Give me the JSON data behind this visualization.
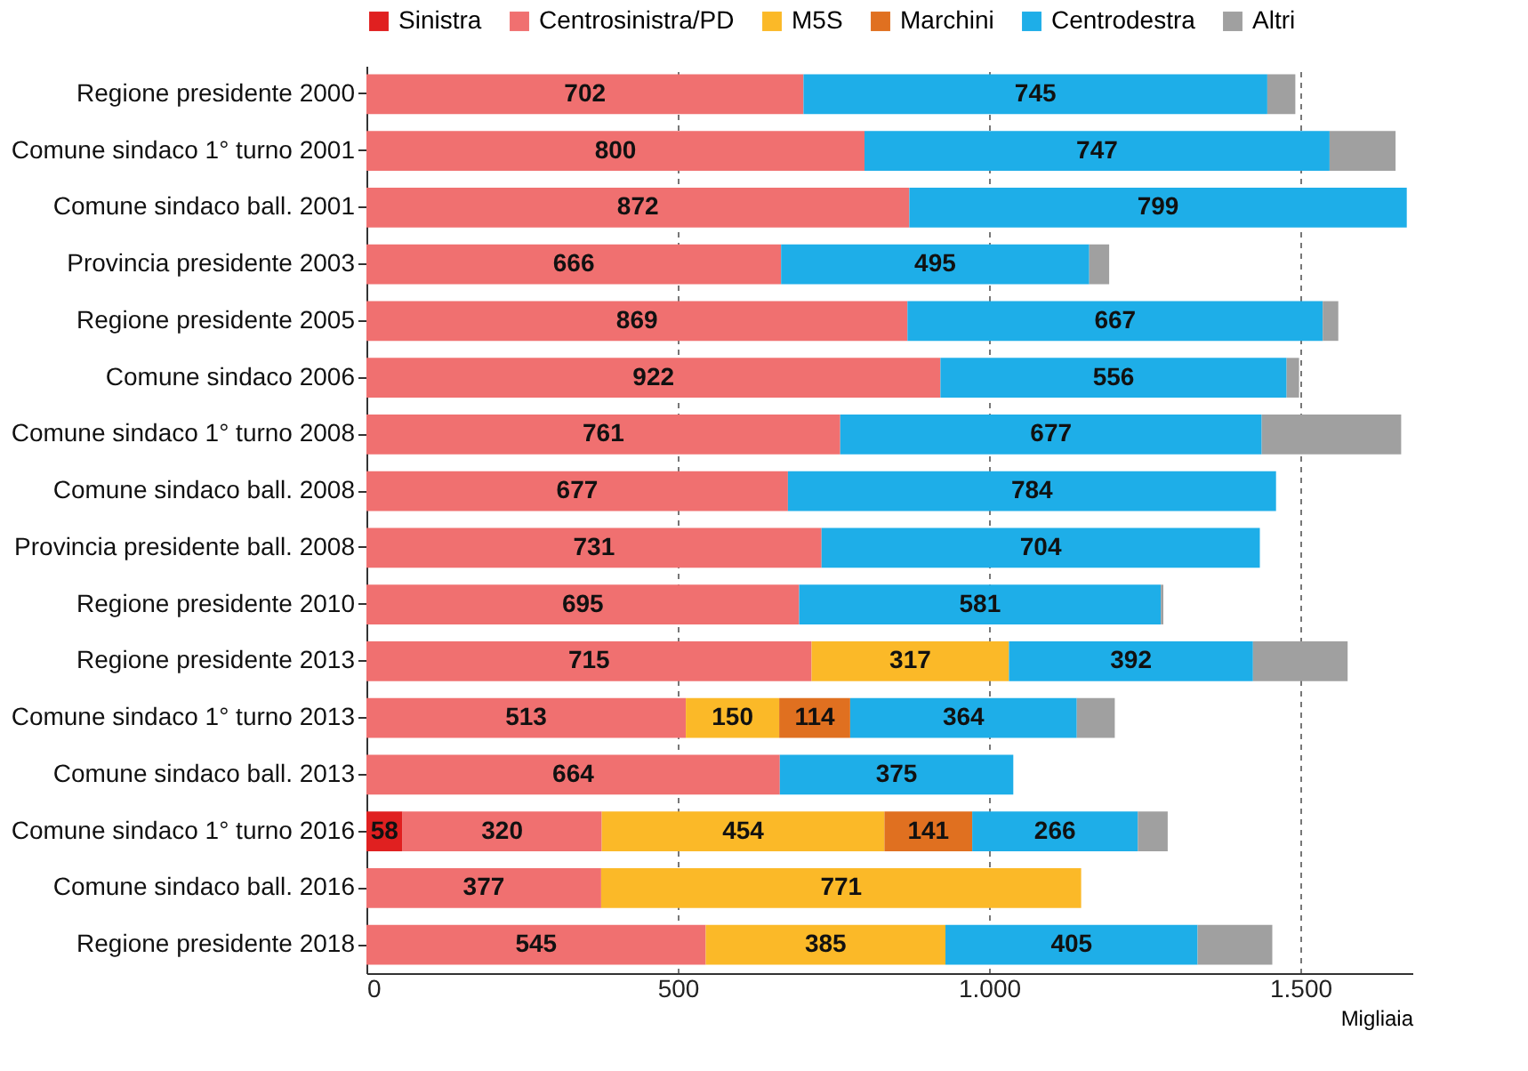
{
  "chart_data": {
    "type": "bar",
    "orientation": "horizontal",
    "stacked": true,
    "xlabel": "Migliaia",
    "categories": [
      "Regione presidente 2000",
      "Comune sindaco 1° turno 2001",
      "Comune sindaco ball. 2001",
      "Provincia presidente 2003",
      "Regione presidente 2005",
      "Comune sindaco 2006",
      "Comune sindaco 1° turno 2008",
      "Comune sindaco ball. 2008",
      "Provincia presidente ball. 2008",
      "Regione presidente 2010",
      "Regione presidente 2013",
      "Comune sindaco 1° turno 2013",
      "Comune sindaco ball. 2013",
      "Comune sindaco 1° turno 2016",
      "Comune sindaco ball. 2016",
      "Regione presidente 2018"
    ],
    "series": [
      {
        "name": "Sinistra",
        "color": "#e02020",
        "values": [
          null,
          null,
          null,
          null,
          null,
          null,
          null,
          null,
          null,
          null,
          null,
          null,
          null,
          58,
          null,
          null
        ],
        "value_labels": [
          null,
          null,
          null,
          null,
          null,
          null,
          null,
          null,
          null,
          null,
          null,
          null,
          null,
          "58",
          null,
          null
        ]
      },
      {
        "name": "Centrosinistra/PD",
        "color": "#f07070",
        "values": [
          702,
          800,
          872,
          666,
          869,
          922,
          761,
          677,
          731,
          695,
          715,
          513,
          664,
          320,
          377,
          545
        ],
        "value_labels": [
          "702",
          "800",
          "872",
          "666",
          "869",
          "922",
          "761",
          "677",
          "731",
          "695",
          "715",
          "513",
          "664",
          "320",
          "377",
          "545"
        ]
      },
      {
        "name": "M5S",
        "color": "#fbb928",
        "values": [
          null,
          null,
          null,
          null,
          null,
          null,
          null,
          null,
          null,
          null,
          317,
          150,
          null,
          454,
          771,
          385
        ],
        "value_labels": [
          null,
          null,
          null,
          null,
          null,
          null,
          null,
          null,
          null,
          null,
          "317",
          "150",
          null,
          "454",
          "771",
          "385"
        ]
      },
      {
        "name": "Marchini",
        "color": "#e07020",
        "values": [
          null,
          null,
          null,
          null,
          null,
          null,
          null,
          null,
          null,
          null,
          null,
          114,
          null,
          141,
          null,
          null
        ],
        "value_labels": [
          null,
          null,
          null,
          null,
          null,
          null,
          null,
          null,
          null,
          null,
          null,
          "114",
          null,
          "141",
          null,
          null
        ]
      },
      {
        "name": "Centrodestra",
        "color": "#1eaee8",
        "values": [
          745,
          747,
          799,
          495,
          667,
          556,
          677,
          784,
          704,
          581,
          392,
          364,
          375,
          266,
          null,
          405
        ],
        "value_labels": [
          "745",
          "747",
          "799",
          "495",
          "667",
          "556",
          "677",
          "784",
          "704",
          "581",
          "392",
          "364",
          "375",
          "266",
          null,
          "405"
        ]
      },
      {
        "name": "Altri",
        "color": "#a0a0a0",
        "values": [
          45,
          106,
          null,
          32,
          25,
          20,
          224,
          null,
          null,
          4,
          152,
          61,
          null,
          48,
          null,
          120
        ]
      }
    ],
    "xlim": [
      0,
      1680
    ],
    "xticks": [
      0,
      500,
      {
        "value": 1000,
        "label": "1.000"
      },
      {
        "value": 1500,
        "label": "1.500"
      }
    ],
    "grid": "x",
    "legend": "top"
  }
}
